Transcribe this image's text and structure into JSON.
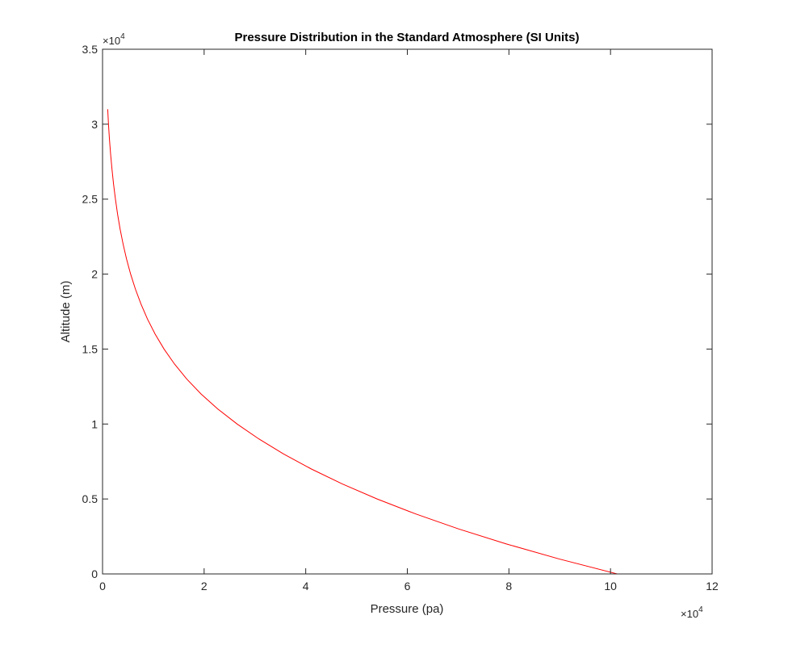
{
  "chart_data": {
    "type": "line",
    "title": "Pressure Distribution in the Standard Atmosphere (SI Units)",
    "xlabel": "Pressure (pa)",
    "ylabel": "Altitude (m)",
    "x_multiplier": "×10",
    "x_exponent": "4",
    "y_multiplier": "×10",
    "y_exponent": "4",
    "xlim": [
      0,
      120000
    ],
    "ylim": [
      0,
      35000
    ],
    "x_ticks": [
      0,
      20000,
      40000,
      60000,
      80000,
      100000,
      120000
    ],
    "x_tick_labels": [
      "0",
      "2",
      "4",
      "6",
      "8",
      "10",
      "12"
    ],
    "y_ticks": [
      0,
      5000,
      10000,
      15000,
      20000,
      25000,
      30000,
      35000
    ],
    "y_tick_labels": [
      "0",
      "0.5",
      "1",
      "1.5",
      "2",
      "2.5",
      "3",
      "3.5"
    ],
    "grid": false,
    "box": true,
    "series": [
      {
        "color": "#ff0000",
        "x": [
          101325,
          89876,
          79501,
          70121,
          61660,
          54048,
          47217,
          41105,
          35651,
          30800,
          26500,
          22700,
          19400,
          16580,
          14170,
          12110,
          10350,
          8850,
          7570,
          6470,
          5530,
          4730,
          4050,
          3460,
          2960,
          2540,
          2170,
          1860,
          1590,
          1360,
          1170,
          1020
        ],
        "y": [
          0,
          1000,
          2000,
          3000,
          4000,
          5000,
          6000,
          7000,
          8000,
          9000,
          10000,
          11000,
          12000,
          13000,
          14000,
          15000,
          16000,
          17000,
          18000,
          19000,
          20000,
          21000,
          22000,
          23000,
          24000,
          25000,
          26000,
          27000,
          28000,
          29000,
          30000,
          31000
        ]
      }
    ]
  }
}
